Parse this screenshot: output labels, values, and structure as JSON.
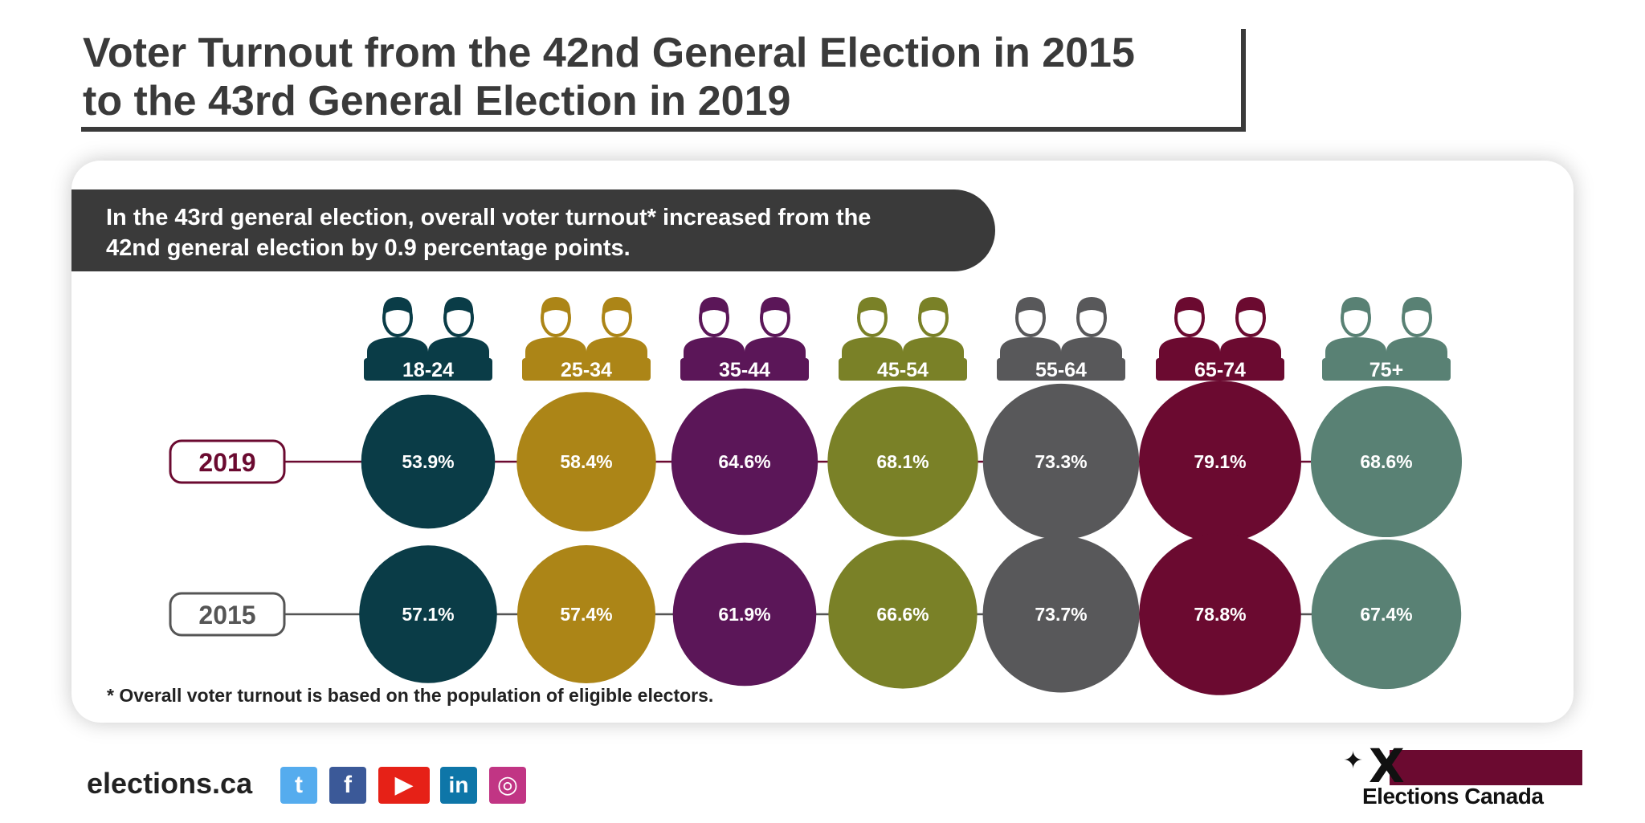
{
  "title": {
    "line1": "Voter Turnout from the 42nd General Election in 2015",
    "line2": "to the 43rd General Election in 2019"
  },
  "banner": {
    "line1": "In the 43rd general election, overall voter turnout* increased from the",
    "line2": "42nd general election by 0.9 percentage points."
  },
  "footnote": "* Overall voter turnout is based on the population of eligible electors.",
  "footer": {
    "site": "elections.ca",
    "social_icons": [
      "twitter-icon",
      "facebook-icon",
      "youtube-icon",
      "linkedin-icon",
      "instagram-icon"
    ],
    "social_colors": [
      "#55acee",
      "#3b5998",
      "#e62117",
      "#0e76a8",
      "#c13584"
    ],
    "brand": "Elections Canada",
    "brand_color": "#6b0a30"
  },
  "chart_data": {
    "type": "bubble",
    "categories": [
      "18-24",
      "25-34",
      "35-44",
      "45-54",
      "55-64",
      "65-74",
      "75+"
    ],
    "colors": [
      "#0a3c47",
      "#ac8517",
      "#5b1658",
      "#7a8127",
      "#58585a",
      "#6b0a30",
      "#598174"
    ],
    "series": [
      {
        "name": "2019",
        "values": [
          53.9,
          58.4,
          64.6,
          68.1,
          73.3,
          79.1,
          68.6
        ],
        "labels": [
          "53.9%",
          "58.4%",
          "64.6%",
          "68.1%",
          "73.3%",
          "79.1%",
          "68.6%"
        ],
        "line_color": "#6b0a30"
      },
      {
        "name": "2015",
        "values": [
          57.1,
          57.4,
          61.9,
          66.6,
          73.7,
          78.8,
          67.4
        ],
        "labels": [
          "57.1%",
          "57.4%",
          "61.9%",
          "66.6%",
          "73.7%",
          "78.8%",
          "67.4%"
        ],
        "line_color": "#555555"
      }
    ],
    "unit": "%"
  }
}
